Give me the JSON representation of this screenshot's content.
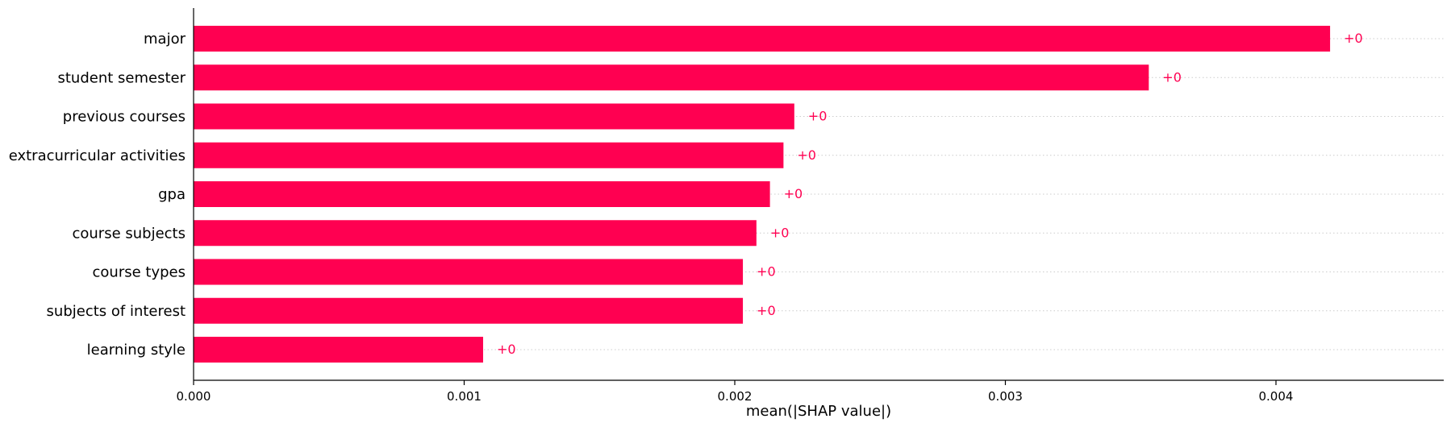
{
  "chart_data": {
    "type": "bar",
    "orientation": "horizontal",
    "categories": [
      "major",
      "student semester",
      "previous courses",
      "extracurricular activities",
      "gpa",
      "course subjects",
      "course types",
      "subjects of interest",
      "learning style"
    ],
    "values": [
      0.0042,
      0.00353,
      0.00222,
      0.00218,
      0.00213,
      0.00208,
      0.00203,
      0.00203,
      0.00107
    ],
    "data_labels": [
      "+0",
      "+0",
      "+0",
      "+0",
      "+0",
      "+0",
      "+0",
      "+0",
      "+0"
    ],
    "xlabel": "mean(|SHAP value|)",
    "ylabel": "",
    "xlim": [
      0,
      0.00462
    ],
    "xticks": [
      0,
      0.001,
      0.002,
      0.003,
      0.004
    ],
    "xtick_labels": [
      "0.000",
      "0.001",
      "0.002",
      "0.003",
      "0.004"
    ],
    "grid": "dotted horizontal guide lines per bar",
    "legend": "none",
    "bar_color": "#ff0051",
    "label_color": "#ff0051"
  }
}
